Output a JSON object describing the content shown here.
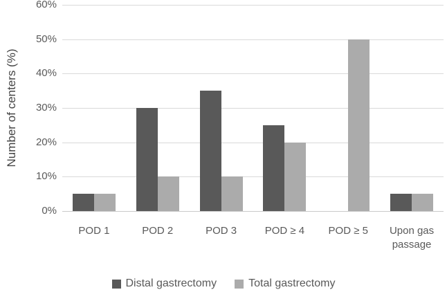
{
  "chart_data": {
    "type": "bar",
    "title": "",
    "xlabel": "",
    "ylabel": "Number of centers (%)",
    "categories": [
      "POD 1",
      "POD 2",
      "POD 3",
      "POD ≥ 4",
      "POD ≥ 5",
      "Upon gas passage"
    ],
    "series": [
      {
        "name": "Distal gastrectomy",
        "color": "#595959",
        "values": [
          5,
          30,
          35,
          25,
          0,
          5
        ]
      },
      {
        "name": "Total gastrectomy",
        "color": "#ababab",
        "values": [
          5,
          10,
          10,
          20,
          50,
          5
        ]
      }
    ],
    "ylim": [
      0,
      60
    ],
    "ytick_step": 10,
    "ytick_labels": [
      "0%",
      "10%",
      "20%",
      "30%",
      "40%",
      "50%",
      "60%"
    ],
    "grid": true,
    "legend_position": "bottom"
  },
  "colors": {
    "gridline": "#d9d9d9",
    "axis_line": "#c9c9c9",
    "text": "#595959"
  }
}
